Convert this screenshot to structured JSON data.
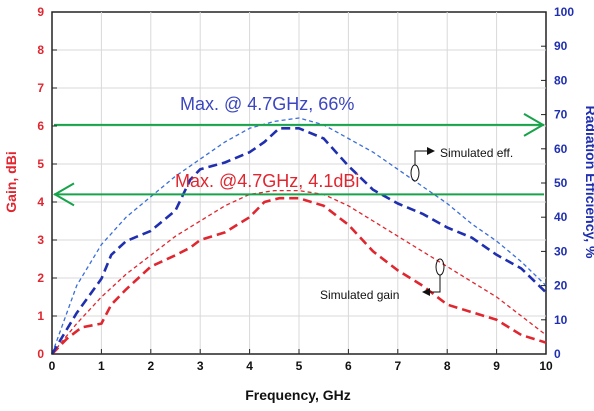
{
  "chart_data": {
    "type": "line",
    "title": "",
    "xlabel": "Frequency, GHz",
    "ylabel_left": "Gain, dBi",
    "ylabel_right": "Radiation Efficiency, %",
    "xlim": [
      0,
      10
    ],
    "ylim_left": [
      0,
      9
    ],
    "ylim_right": [
      0,
      100
    ],
    "x_ticks": [
      "0",
      "1",
      "2",
      "3",
      "4",
      "5",
      "6",
      "7",
      "8",
      "9",
      "10"
    ],
    "y_left_ticks": [
      "0",
      "1",
      "2",
      "3",
      "4",
      "5",
      "6",
      "7",
      "8",
      "9"
    ],
    "y_right_ticks": [
      "0",
      "10",
      "20",
      "30",
      "40",
      "50",
      "60",
      "70",
      "80",
      "90",
      "100"
    ],
    "grid": true,
    "series": [
      {
        "axis": "left",
        "color": "#e0262f",
        "style": "thin-dash",
        "x": [
          0,
          0.5,
          1,
          1.5,
          2,
          2.5,
          3,
          3.5,
          4,
          4.5,
          5,
          5.5,
          6,
          6.5,
          7,
          7.5,
          8,
          8.5,
          9,
          9.5,
          10
        ],
        "y": [
          0,
          0.8,
          1.5,
          2.1,
          2.6,
          3.1,
          3.5,
          3.9,
          4.2,
          4.3,
          4.3,
          4.2,
          3.9,
          3.5,
          3.1,
          2.7,
          2.3,
          1.9,
          1.5,
          1.0,
          0.5
        ]
      },
      {
        "axis": "left",
        "color": "#e0262f",
        "style": "thick-dash",
        "x": [
          0,
          0.3,
          0.6,
          1,
          1.2,
          1.5,
          2,
          2.5,
          2.8,
          3,
          3.5,
          4,
          4.3,
          4.6,
          5,
          5.5,
          6,
          6.5,
          7,
          7.5,
          8,
          8.5,
          9,
          9.5,
          10
        ],
        "y": [
          0,
          0.4,
          0.7,
          0.8,
          1.3,
          1.7,
          2.3,
          2.6,
          2.8,
          3.0,
          3.2,
          3.6,
          4.0,
          4.1,
          4.1,
          3.9,
          3.4,
          2.7,
          2.2,
          1.8,
          1.3,
          1.1,
          0.9,
          0.5,
          0.3
        ]
      },
      {
        "axis": "right",
        "color": "#3b6fd8",
        "style": "thin-dash",
        "x": [
          0,
          0.5,
          1,
          1.5,
          2,
          2.5,
          3,
          3.5,
          4,
          4.5,
          5,
          5.5,
          6,
          6.5,
          7,
          7.5,
          8,
          8.5,
          9,
          9.5,
          10
        ],
        "y": [
          0,
          20,
          32,
          40,
          46,
          52,
          57,
          62,
          66,
          68,
          69,
          67,
          63,
          59,
          54,
          49,
          44,
          38,
          33,
          27,
          20
        ]
      },
      {
        "axis": "right",
        "color": "#1f2fb0",
        "style": "thick-dash",
        "x": [
          0,
          0.5,
          1,
          1.2,
          1.5,
          2,
          2.5,
          2.8,
          3,
          3.5,
          4,
          4.3,
          4.6,
          5,
          5.5,
          6,
          6.5,
          7,
          7.5,
          8,
          8.5,
          9,
          9.5,
          10
        ],
        "y": [
          0,
          12,
          22,
          29,
          33,
          36,
          42,
          51,
          54,
          56,
          59,
          62,
          66,
          66,
          63,
          55,
          48,
          44,
          41,
          37,
          34,
          29,
          25,
          18
        ]
      }
    ],
    "reference_arrows": [
      {
        "axis": "right",
        "y": 67,
        "direction": "right",
        "color": "#16a34a"
      },
      {
        "axis": "left",
        "y": 4.2,
        "direction": "left",
        "color": "#16a34a"
      }
    ],
    "annotations": {
      "max_eff": "Max. @ 4.7GHz, 66%",
      "max_gain": "Max. @4.7GHz, 4.1dBi",
      "sim_eff": "Simulated eff.",
      "sim_gain": "Simulated gain"
    }
  }
}
